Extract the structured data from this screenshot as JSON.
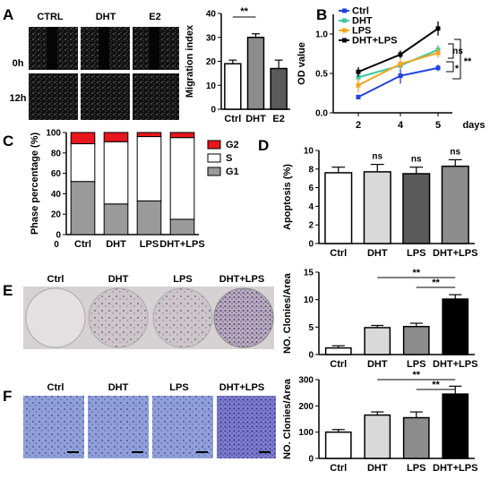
{
  "figure": {
    "panels": {
      "A": "A",
      "B": "B",
      "C": "C",
      "D": "D",
      "E": "E",
      "F": "F"
    },
    "panel_a_images": {
      "columns": [
        "CTRL",
        "DHT",
        "E2"
      ],
      "rows": [
        "0h",
        "12h"
      ]
    },
    "panel_e_images": {
      "columns": [
        "Ctrl",
        "DHT",
        "LPS",
        "DHT+LPS"
      ]
    },
    "panel_f_images": {
      "columns": [
        "Ctrl",
        "DHT",
        "LPS",
        "DHT+LPS"
      ]
    },
    "colors": {
      "ctrl": "#2040e0",
      "dht": "#3cc8a0",
      "lps": "#f5a623",
      "dhtlps": "#000000",
      "g2": "#e8161d",
      "s": "#ffffff",
      "g1": "#9a9a9a",
      "bar_white": "#ffffff",
      "bar_grey": "#8c8c8c",
      "bar_light": "#d9d9d9",
      "bar_dark": "#5a5a5a",
      "bar_black": "#000000"
    }
  },
  "chart_data": [
    {
      "id": "A",
      "type": "bar",
      "categories": [
        "Ctrl",
        "DHT",
        "E2"
      ],
      "values": [
        19,
        30,
        17
      ],
      "errors": [
        1.5,
        1.5,
        3.5
      ],
      "ylabel": "Migration index",
      "ylim": [
        0,
        40
      ],
      "yticks": [
        "0",
        "10",
        "20",
        "30",
        "40"
      ],
      "annotations": [
        {
          "text": "**",
          "from": "Ctrl",
          "to": "DHT"
        }
      ]
    },
    {
      "id": "B",
      "type": "line",
      "x": [
        2,
        4,
        5
      ],
      "xticks": [
        "2",
        "4",
        "5"
      ],
      "xlabel": "days",
      "ylabel": "OD value",
      "ylim": [
        0,
        1.25
      ],
      "yticks": [
        "0.0",
        "0.5",
        "1.0"
      ],
      "series": [
        {
          "name": "Ctrl",
          "values": [
            0.2,
            0.47,
            0.57
          ],
          "errors": [
            0.03,
            0.1,
            0.04
          ]
        },
        {
          "name": "DHT",
          "values": [
            0.45,
            0.6,
            0.8
          ],
          "errors": [
            0.05,
            0.05,
            0.06
          ]
        },
        {
          "name": "LPS",
          "values": [
            0.35,
            0.62,
            0.76
          ],
          "errors": [
            0.09,
            0.06,
            0.06
          ]
        },
        {
          "name": "DHT+LPS",
          "values": [
            0.52,
            0.74,
            1.07
          ],
          "errors": [
            0.06,
            0.05,
            0.09
          ]
        }
      ],
      "annotations": [
        "ns",
        "*",
        "**"
      ],
      "legend": "top-left"
    },
    {
      "id": "C",
      "type": "bar",
      "stacked": true,
      "categories": [
        "Ctrl",
        "DHT",
        "LPS",
        "DHT+LPS"
      ],
      "series": [
        {
          "name": "G1",
          "values": [
            52,
            30,
            33,
            15
          ]
        },
        {
          "name": "S",
          "values": [
            37,
            61,
            63,
            80
          ]
        },
        {
          "name": "G2",
          "values": [
            11,
            9,
            4,
            5
          ]
        }
      ],
      "ylabel": "Phase percentage (%)",
      "ylim": [
        0,
        100
      ],
      "yticks": [
        "0",
        "20",
        "40",
        "60",
        "80",
        "100"
      ],
      "legend": "right"
    },
    {
      "id": "D",
      "type": "bar",
      "categories": [
        "Ctrl",
        "DHT",
        "LPS",
        "DHT+LPS"
      ],
      "values": [
        7.6,
        7.7,
        7.5,
        8.3
      ],
      "errors": [
        0.6,
        0.8,
        0.7,
        0.7
      ],
      "ylabel": "Apoptosis (%)",
      "ylim": [
        0,
        10
      ],
      "yticks": [
        "0",
        "2",
        "4",
        "6",
        "8",
        "10"
      ],
      "annotations": [
        "ns",
        "ns",
        "ns"
      ]
    },
    {
      "id": "E",
      "type": "bar",
      "categories": [
        "Ctrl",
        "DHT",
        "LPS",
        "DHT+LPS"
      ],
      "values": [
        1.2,
        4.9,
        5.1,
        10.1
      ],
      "errors": [
        0.4,
        0.4,
        0.6,
        0.8
      ],
      "ylabel": "NO. Clonies/Area",
      "ylim": [
        0,
        15
      ],
      "yticks": [
        "0",
        "5",
        "10",
        "15"
      ],
      "annotations": [
        "**",
        "**"
      ]
    },
    {
      "id": "F",
      "type": "bar",
      "categories": [
        "Ctrl",
        "DHT",
        "LPS",
        "DHT+LPS"
      ],
      "values": [
        100,
        165,
        155,
        245
      ],
      "errors": [
        10,
        12,
        22,
        30
      ],
      "ylabel": "NO. Clonies/Area",
      "ylim": [
        0,
        300
      ],
      "yticks": [
        "0",
        "100",
        "200",
        "300"
      ],
      "annotations": [
        "**",
        "**"
      ]
    }
  ]
}
